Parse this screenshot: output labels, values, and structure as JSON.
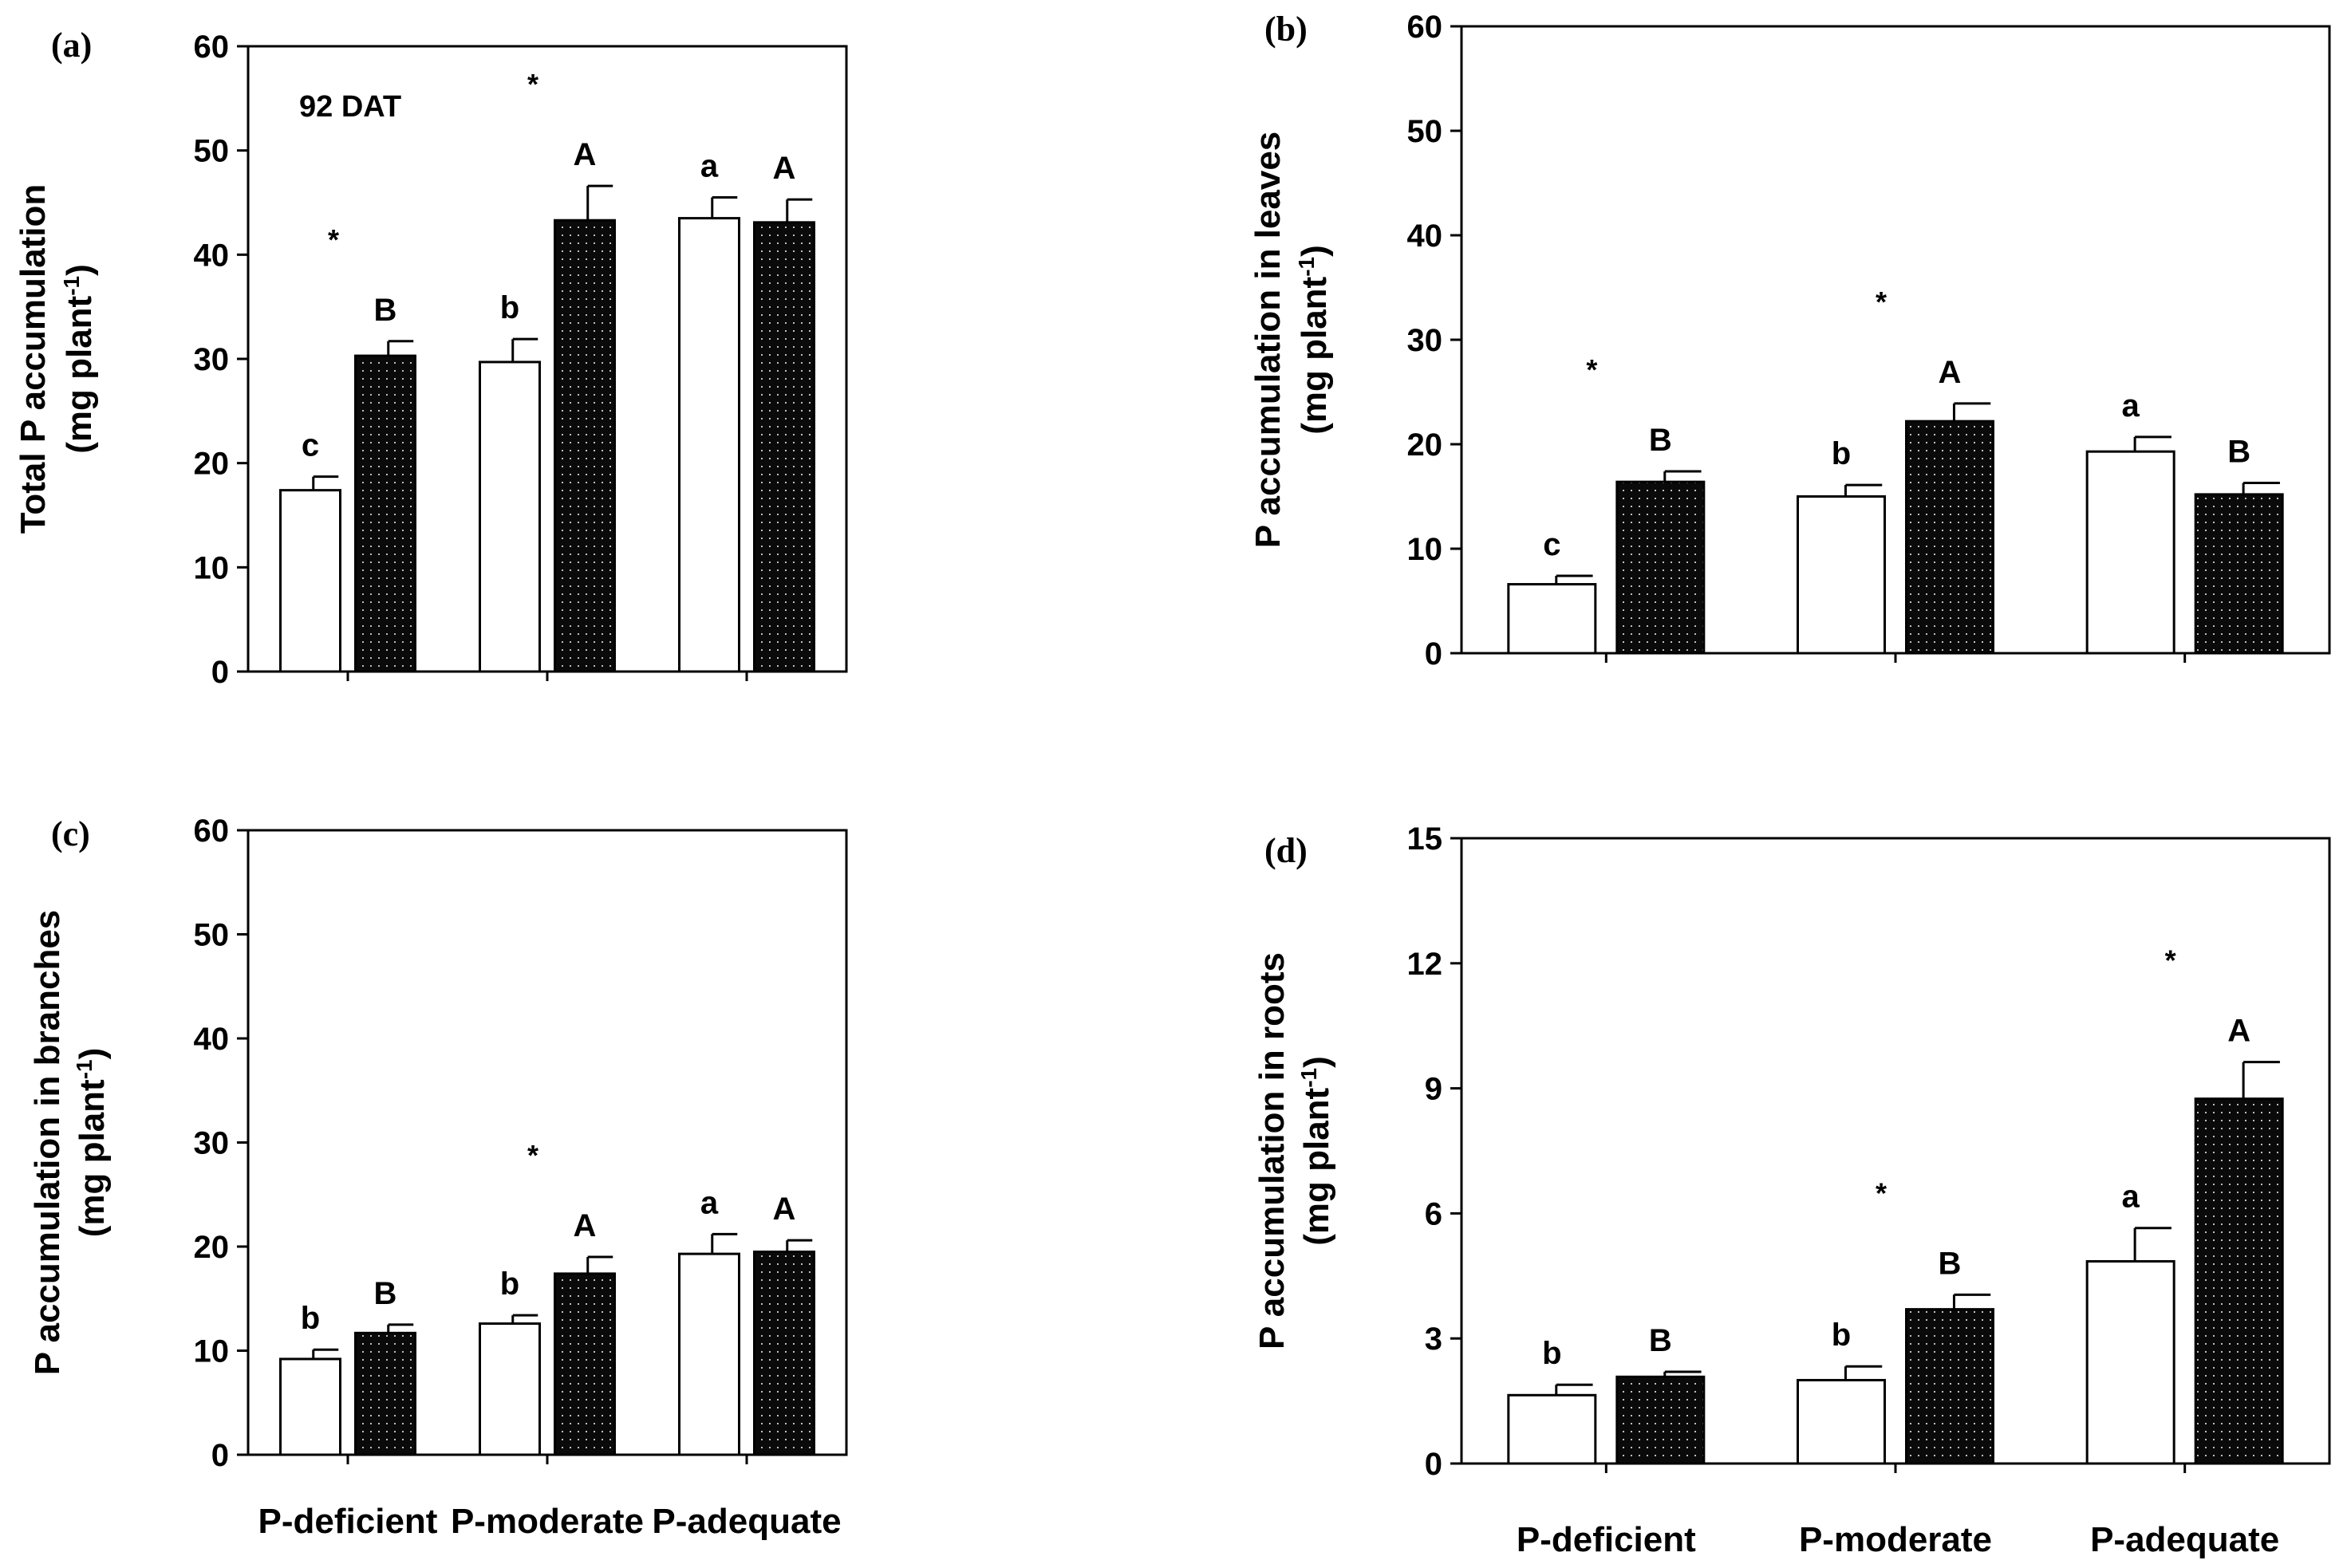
{
  "chart_data": [
    {
      "type": "bar",
      "panel_label": "(a)",
      "annotation": "92 DAT",
      "categories": [
        "P-deficient",
        "P-moderate",
        "P-adequate"
      ],
      "ylabel": "Total P accumulation",
      "ylabel_unit_prefix": "(mg plant",
      "ylabel_unit_sup": "-1",
      "ylabel_unit_suffix": ")",
      "ylim": [
        0,
        60
      ],
      "yticks": [
        0,
        10,
        20,
        30,
        40,
        50,
        60
      ],
      "ytick_labels": [
        "0",
        "10",
        "20",
        "30",
        "40",
        "50",
        "60"
      ],
      "series": [
        {
          "name": "open",
          "values": [
            17.4,
            29.7,
            43.5
          ],
          "errors": [
            1.3,
            2.2,
            2.0
          ],
          "letters": [
            "c",
            "b",
            "a"
          ]
        },
        {
          "name": "dotted",
          "values": [
            30.3,
            43.3,
            43.1
          ],
          "errors": [
            1.4,
            3.3,
            2.2
          ],
          "letters": [
            "B",
            "A",
            "A"
          ]
        }
      ],
      "stars": [
        "*",
        "*",
        ""
      ]
    },
    {
      "type": "bar",
      "panel_label": "(b)",
      "annotation": "",
      "categories": [
        "P-deficient",
        "P-moderate",
        "P-adequate"
      ],
      "ylabel": "P accumulation in leaves",
      "ylabel_unit_prefix": "(mg plant",
      "ylabel_unit_sup": "-1",
      "ylabel_unit_suffix": ")",
      "ylim": [
        0,
        60
      ],
      "yticks": [
        0,
        10,
        20,
        30,
        40,
        50,
        60
      ],
      "ytick_labels": [
        "0",
        "10",
        "20",
        "30",
        "40",
        "50",
        "60"
      ],
      "series": [
        {
          "name": "open",
          "values": [
            6.6,
            15.0,
            19.3
          ],
          "errors": [
            0.8,
            1.1,
            1.4
          ],
          "letters": [
            "c",
            "b",
            "a"
          ]
        },
        {
          "name": "dotted",
          "values": [
            16.4,
            22.2,
            15.2
          ],
          "errors": [
            1.0,
            1.7,
            1.1
          ],
          "letters": [
            "B",
            "A",
            "B"
          ]
        }
      ],
      "stars": [
        "*",
        "*",
        ""
      ]
    },
    {
      "type": "bar",
      "panel_label": "(c)",
      "annotation": "",
      "categories": [
        "P-deficient",
        "P-moderate",
        "P-adequate"
      ],
      "category_labels": [
        "P-deficient",
        "P-moderate",
        "P-adequate"
      ],
      "ylabel": "P accumulation in branches",
      "ylabel_unit_prefix": "(mg plant",
      "ylabel_unit_sup": "-1",
      "ylabel_unit_suffix": ")",
      "ylim": [
        0,
        60
      ],
      "yticks": [
        0,
        10,
        20,
        30,
        40,
        50,
        60
      ],
      "ytick_labels": [
        "0",
        "10",
        "20",
        "30",
        "40",
        "50",
        "60"
      ],
      "series": [
        {
          "name": "open",
          "values": [
            9.2,
            12.6,
            19.3
          ],
          "errors": [
            0.9,
            0.8,
            1.9
          ],
          "letters": [
            "b",
            "b",
            "a"
          ]
        },
        {
          "name": "dotted",
          "values": [
            11.7,
            17.4,
            19.5
          ],
          "errors": [
            0.8,
            1.6,
            1.1
          ],
          "letters": [
            "B",
            "A",
            "A"
          ]
        }
      ],
      "stars": [
        "",
        "*",
        ""
      ]
    },
    {
      "type": "bar",
      "panel_label": "(d)",
      "annotation": "",
      "categories": [
        "P-deficient",
        "P-moderate",
        "P-adequate"
      ],
      "category_labels": [
        "P-deficient",
        "P-moderate",
        "P-adequate"
      ],
      "ylabel": "P accumulation in roots",
      "ylabel_unit_prefix": "(mg plant",
      "ylabel_unit_sup": "-1",
      "ylabel_unit_suffix": ")",
      "ylim": [
        0,
        15
      ],
      "yticks": [
        0,
        3,
        6,
        9,
        12,
        15
      ],
      "ytick_labels": [
        "0",
        "3",
        "6",
        "9",
        "12",
        "15"
      ],
      "series": [
        {
          "name": "open",
          "values": [
            1.64,
            2.0,
            4.85
          ],
          "errors": [
            0.25,
            0.33,
            0.8
          ],
          "letters": [
            "b",
            "b",
            "a"
          ]
        },
        {
          "name": "dotted",
          "values": [
            2.08,
            3.7,
            8.75
          ],
          "errors": [
            0.12,
            0.35,
            0.88
          ],
          "letters": [
            "B",
            "B",
            "A"
          ]
        }
      ],
      "stars": [
        "",
        "*",
        "*"
      ]
    }
  ]
}
